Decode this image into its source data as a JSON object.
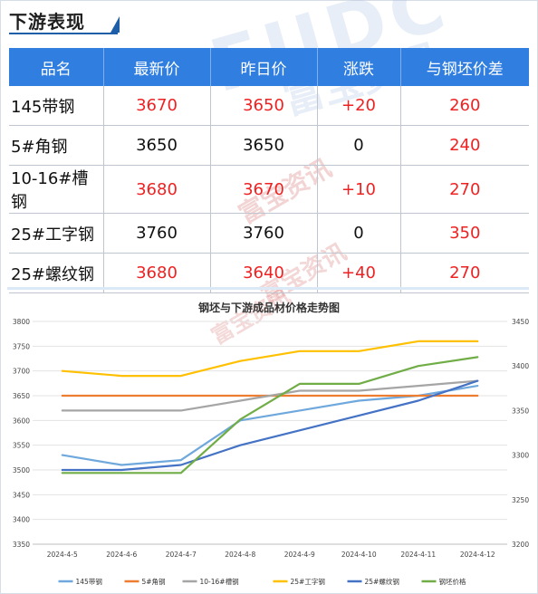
{
  "section_title": "下游表现",
  "watermarks": {
    "latin": "FUDC",
    "cn": "富宝资讯"
  },
  "table": {
    "headers": [
      "品名",
      "最新价",
      "昨日价",
      "涨跌",
      "与钢坯价差"
    ],
    "rows": [
      {
        "name": "145带钢",
        "latest": "3670",
        "prev": "3650",
        "change": "+20",
        "spread": "260",
        "latest_color": "#ee2222",
        "prev_color": "#ee2222",
        "change_color": "#ee2222",
        "spread_color": "#ee2222"
      },
      {
        "name": "5#角钢",
        "latest": "3650",
        "prev": "3650",
        "change": "0",
        "spread": "240",
        "latest_color": "#111111",
        "prev_color": "#111111",
        "change_color": "#111111",
        "spread_color": "#ee2222"
      },
      {
        "name": "10-16#槽钢",
        "latest": "3680",
        "prev": "3670",
        "change": "+10",
        "spread": "270",
        "latest_color": "#ee2222",
        "prev_color": "#ee2222",
        "change_color": "#ee2222",
        "spread_color": "#ee2222"
      },
      {
        "name": "25#工字钢",
        "latest": "3760",
        "prev": "3760",
        "change": "0",
        "spread": "350",
        "latest_color": "#111111",
        "prev_color": "#111111",
        "change_color": "#111111",
        "spread_color": "#ee2222"
      },
      {
        "name": "25#螺纹钢",
        "latest": "3680",
        "prev": "3640",
        "change": "+40",
        "spread": "270",
        "latest_color": "#ee2222",
        "prev_color": "#ee2222",
        "change_color": "#ee2222",
        "spread_color": "#ee2222"
      }
    ]
  },
  "chart_data": {
    "type": "line",
    "title": "钢坯与下游成品材价格走势图",
    "categories": [
      "2024-4-5",
      "2024-4-6",
      "2024-4-7",
      "2024-4-8",
      "2024-4-9",
      "2024-4-10",
      "2024-4-11",
      "2024-4-12"
    ],
    "y_left": {
      "min": 3350,
      "max": 3800,
      "step": 50
    },
    "y_right": {
      "min": 3200,
      "max": 3450,
      "step": 50
    },
    "grid": true,
    "legend_position": "bottom",
    "series": [
      {
        "name": "145带钢",
        "axis": "left",
        "color": "#6fa8dc",
        "values": [
          3530,
          3510,
          3520,
          3600,
          3620,
          3640,
          3650,
          3670
        ]
      },
      {
        "name": "5#角钢",
        "axis": "left",
        "color": "#ed7d31",
        "values": [
          3650,
          3650,
          3650,
          3650,
          3650,
          3650,
          3650,
          3650
        ]
      },
      {
        "name": "10-16#槽钢",
        "axis": "left",
        "color": "#a5a5a5",
        "values": [
          3620,
          3620,
          3620,
          3640,
          3660,
          3660,
          3670,
          3680
        ]
      },
      {
        "name": "25#工字钢",
        "axis": "left",
        "color": "#ffc000",
        "values": [
          3700,
          3690,
          3690,
          3720,
          3740,
          3740,
          3760,
          3760
        ]
      },
      {
        "name": "25#螺纹钢",
        "axis": "left",
        "color": "#4472c4",
        "values": [
          3500,
          3500,
          3510,
          3550,
          3580,
          3610,
          3640,
          3680
        ]
      },
      {
        "name": "钢坯价格",
        "axis": "right",
        "color": "#70ad47",
        "values": [
          3280,
          3280,
          3280,
          3340,
          3380,
          3380,
          3400,
          3410
        ]
      }
    ]
  }
}
